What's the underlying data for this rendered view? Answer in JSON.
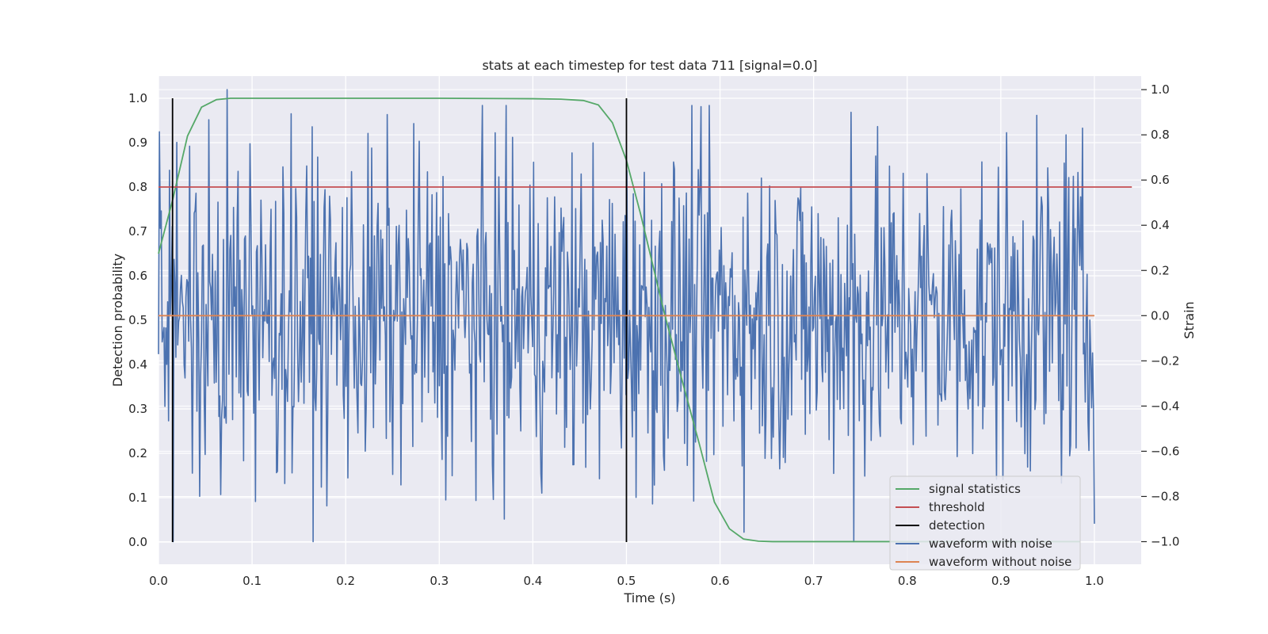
{
  "chart_data": {
    "type": "line",
    "title": "stats at each timestep for test data 711 [signal=0.0]",
    "xlabel": "Time (s)",
    "ylabel": "Detection probability",
    "y2label": "Strain",
    "xlim": [
      0.0,
      1.05
    ],
    "ylim": [
      -0.05,
      1.05
    ],
    "y2lim": [
      -1.1,
      1.06
    ],
    "x_ticks": [
      "0.0",
      "0.1",
      "0.2",
      "0.3",
      "0.4",
      "0.5",
      "0.6",
      "0.7",
      "0.8",
      "0.9",
      "1.0"
    ],
    "y_ticks": [
      "0.0",
      "0.1",
      "0.2",
      "0.3",
      "0.4",
      "0.5",
      "0.6",
      "0.7",
      "0.8",
      "0.9",
      "1.0"
    ],
    "y2_ticks": [
      "−1.0",
      "−0.8",
      "−0.6",
      "−0.4",
      "−0.2",
      "0.0",
      "0.2",
      "0.4",
      "0.6",
      "0.8",
      "1.0"
    ],
    "grid": true,
    "legend_position": "lower-right",
    "colors": {
      "background": "#eaeaf2",
      "grid": "#ffffff",
      "signal_statistics": "#55a868",
      "threshold": "#c44e52",
      "detection": "#000000",
      "waveform_with_noise": "#4c72b0",
      "waveform_without_noise": "#dd8452"
    },
    "series": [
      {
        "name": "signal statistics",
        "axis": "left",
        "x": [
          0.0,
          0.015,
          0.031,
          0.046,
          0.062,
          0.077,
          0.1,
          0.2,
          0.3,
          0.4,
          0.43,
          0.454,
          0.47,
          0.485,
          0.5,
          0.515,
          0.54,
          0.56,
          0.578,
          0.594,
          0.61,
          0.625,
          0.641,
          0.656,
          0.7,
          0.8,
          0.9,
          0.985
        ],
        "values": [
          0.65,
          0.77,
          0.915,
          0.98,
          0.997,
          1.0,
          1.0,
          1.0,
          1.0,
          0.999,
          0.998,
          0.995,
          0.985,
          0.945,
          0.86,
          0.74,
          0.52,
          0.36,
          0.22,
          0.09,
          0.03,
          0.007,
          0.002,
          0.001,
          0.001,
          0.001,
          0.001,
          0.001
        ]
      },
      {
        "name": "threshold",
        "axis": "left",
        "x": [
          0.0,
          1.04
        ],
        "values": [
          0.8,
          0.8
        ]
      },
      {
        "name": "detection",
        "axis": "left",
        "segments": [
          {
            "x": 0.015,
            "y": [
              0.0,
              1.0
            ]
          },
          {
            "x": 0.5,
            "y": [
              0.0,
              1.0
            ]
          }
        ]
      },
      {
        "name": "waveform with noise",
        "axis": "right",
        "x_start": 0.0,
        "x_end": 1.0,
        "n_points": 1024,
        "min": -1.0,
        "max": 1.0,
        "peaks": [
          {
            "x": 0.015,
            "value": -1.0
          },
          {
            "x": 0.073,
            "value": 1.0
          },
          {
            "x": 0.275,
            "value": 0.85
          },
          {
            "x": 0.37,
            "value": -0.9
          },
          {
            "x": 0.74,
            "value": 0.9
          },
          {
            "x": 0.74,
            "value": -1.0
          },
          {
            "x": 0.97,
            "value": 0.8
          }
        ]
      },
      {
        "name": "waveform without noise",
        "axis": "right",
        "x": [
          0.0,
          1.0
        ],
        "values": [
          0.0,
          0.0
        ]
      }
    ]
  }
}
